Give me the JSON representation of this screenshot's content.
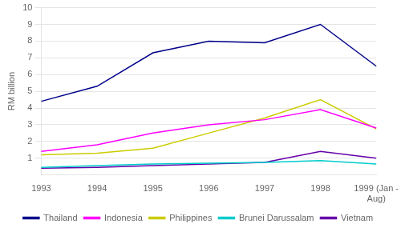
{
  "chart_data": {
    "type": "line",
    "ylabel": "RM billion",
    "categories": [
      "1993",
      "1994",
      "1995",
      "1996",
      "1997",
      "1998",
      "1999 (Jan -\nAug)"
    ],
    "series": [
      {
        "name": "Thailand",
        "color": "#00008B",
        "values": [
          4.4,
          5.3,
          7.3,
          8.0,
          7.9,
          9.0,
          6.5
        ]
      },
      {
        "name": "Indonesia",
        "color": "#FF00FF",
        "values": [
          1.4,
          1.8,
          2.5,
          3.0,
          3.3,
          3.9,
          2.8
        ]
      },
      {
        "name": "Philippines",
        "color": "#CCCC00",
        "values": [
          1.2,
          1.3,
          1.6,
          2.5,
          3.4,
          4.5,
          2.75
        ]
      },
      {
        "name": "Brunei Darussalam",
        "color": "#00CCCC",
        "values": [
          0.45,
          0.55,
          0.65,
          0.7,
          0.75,
          0.85,
          0.65
        ]
      },
      {
        "name": "Vietnam",
        "color": "#6600AA",
        "values": [
          0.4,
          0.45,
          0.55,
          0.65,
          0.75,
          1.4,
          1.0
        ]
      }
    ],
    "ylim": [
      0,
      10
    ],
    "yticks": [
      1,
      2,
      3,
      4,
      5,
      6,
      7,
      8,
      9,
      10
    ],
    "grid": true,
    "legend": "bottom"
  }
}
